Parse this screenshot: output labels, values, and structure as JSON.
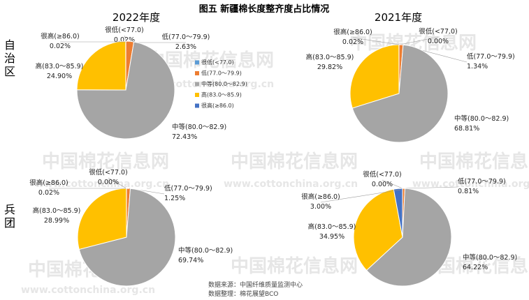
{
  "title": "图五  新疆棉长度整齐度占比情况",
  "columns": [
    "2022年度",
    "2021年度"
  ],
  "rows": [
    "自治区",
    "兵团"
  ],
  "watermark": {
    "cn": "中国棉花信息网",
    "url": "www.cottonchina.org.cn"
  },
  "legend": {
    "items": [
      "很低(<77.0)",
      "低(77.0～79.9)",
      "中等(80.0～82.9)",
      "高(83.0～85.9)",
      "很高(≥86.0)"
    ]
  },
  "source": {
    "line1": "数据来源：中国纤维质量监测中心",
    "line2": "数据整理：棉花展望BCO"
  },
  "colors": {
    "very_low": "#5b9bd5",
    "low": "#ed7d31",
    "medium": "#a5a5a5",
    "high": "#ffc000",
    "very_high": "#4472c4"
  },
  "chart_data": [
    {
      "type": "pie",
      "column": "2022年度",
      "row": "自治区",
      "slices": [
        {
          "label": "很低(<77.0)",
          "value": 0.02,
          "value_text": "0.02%",
          "color_key": "very_low"
        },
        {
          "label": "低(77.0～79.9)",
          "value": 2.63,
          "value_text": "2.63%",
          "color_key": "low"
        },
        {
          "label": "中等(80.0～82.9)",
          "value": 72.43,
          "value_text": "72.43%",
          "color_key": "medium"
        },
        {
          "label": "高(83.0～85.9)",
          "value": 24.9,
          "value_text": "24.90%",
          "color_key": "high"
        },
        {
          "label": "很高(≥86.0)",
          "value": 0.02,
          "value_text": "0.02%",
          "color_key": "very_high"
        }
      ]
    },
    {
      "type": "pie",
      "column": "2021年度",
      "row": "自治区",
      "slices": [
        {
          "label": "很低(<77.0)",
          "value": 0.0,
          "value_text": "0.00%",
          "color_key": "very_low"
        },
        {
          "label": "低(77.0～79.9)",
          "value": 1.34,
          "value_text": "1.34%",
          "color_key": "low"
        },
        {
          "label": "中等(80.0～82.9)",
          "value": 68.81,
          "value_text": "68.81%",
          "color_key": "medium"
        },
        {
          "label": "高(83.0～85.9)",
          "value": 29.82,
          "value_text": "29.82%",
          "color_key": "high"
        },
        {
          "label": "很高(≥86.0)",
          "value": 0.02,
          "value_text": "0.02%",
          "color_key": "very_high"
        }
      ]
    },
    {
      "type": "pie",
      "column": "2022年度",
      "row": "兵团",
      "slices": [
        {
          "label": "很低(<77.0)",
          "value": 0.0,
          "value_text": "0.00%",
          "color_key": "very_low"
        },
        {
          "label": "低(77.0～79.9)",
          "value": 1.25,
          "value_text": "1.25%",
          "color_key": "low"
        },
        {
          "label": "中等(80.0～82.9)",
          "value": 69.74,
          "value_text": "69.74%",
          "color_key": "medium"
        },
        {
          "label": "高(83.0～85.9)",
          "value": 28.99,
          "value_text": "28.99%",
          "color_key": "high"
        },
        {
          "label": "很高(≥86.0)",
          "value": 0.02,
          "value_text": "0.02%",
          "color_key": "very_high"
        }
      ]
    },
    {
      "type": "pie",
      "column": "2021年度",
      "row": "兵团",
      "slices": [
        {
          "label": "很低(<77.0)",
          "value": 0.0,
          "value_text": "0.00%",
          "color_key": "very_low"
        },
        {
          "label": "低(77.0～79.9)",
          "value": 0.81,
          "value_text": "0.81%",
          "color_key": "low"
        },
        {
          "label": "中等(80.0～82.9)",
          "value": 64.22,
          "value_text": "64.22%",
          "color_key": "medium"
        },
        {
          "label": "高(83.0～85.9)",
          "value": 34.95,
          "value_text": "34.95%",
          "color_key": "high"
        },
        {
          "label": "很高(≥86.0)",
          "value": 3.0,
          "value_text": "3.00%",
          "color_key": "very_high"
        }
      ]
    }
  ]
}
